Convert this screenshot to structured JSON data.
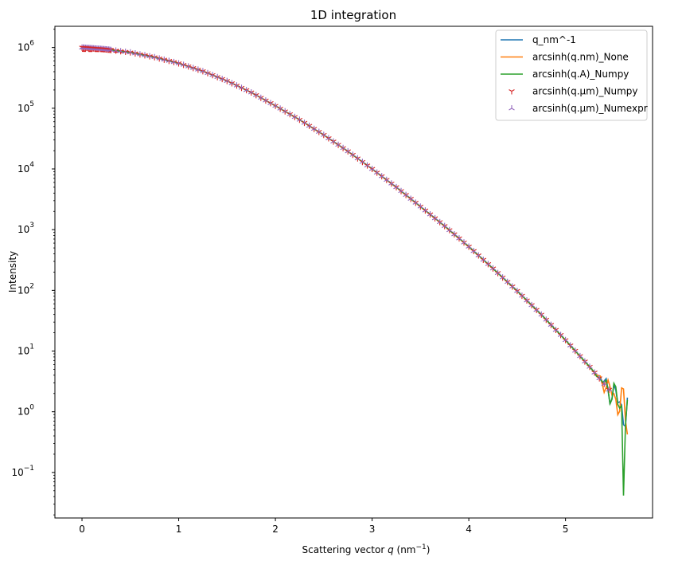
{
  "chart_data": {
    "type": "line",
    "title": "1D integration",
    "xlabel_prefix": "Scattering vector ",
    "xlabel_var": "q",
    "xlabel_unit_open": " (nm",
    "xlabel_unit_exp": "−1",
    "xlabel_unit_close": ")",
    "ylabel": "Intensity",
    "xlim": [
      -0.28,
      5.9
    ],
    "ylim_log10": [
      -1.75,
      6.35
    ],
    "yscale": "log",
    "grid": false,
    "legend_position": "top-right",
    "x_ticks": [
      {
        "value": 0,
        "label": "0"
      },
      {
        "value": 1,
        "label": "1"
      },
      {
        "value": 2,
        "label": "2"
      },
      {
        "value": 3,
        "label": "3"
      },
      {
        "value": 4,
        "label": "4"
      },
      {
        "value": 5,
        "label": "5"
      }
    ],
    "y_ticks": [
      {
        "exp": -1,
        "base": "10",
        "sup": "−1"
      },
      {
        "exp": 0,
        "base": "10",
        "sup": "0"
      },
      {
        "exp": 1,
        "base": "10",
        "sup": "1"
      },
      {
        "exp": 2,
        "base": "10",
        "sup": "2"
      },
      {
        "exp": 3,
        "base": "10",
        "sup": "3"
      },
      {
        "exp": 4,
        "base": "10",
        "sup": "4"
      },
      {
        "exp": 5,
        "base": "10",
        "sup": "5"
      },
      {
        "exp": 6,
        "base": "10",
        "sup": "6"
      }
    ],
    "curve_profile": {
      "q": [
        0.0,
        0.25,
        0.5,
        0.75,
        1.0,
        1.25,
        1.5,
        1.75,
        2.0,
        2.25,
        2.5,
        2.75,
        3.0,
        3.25,
        3.5,
        3.75,
        4.0,
        4.25,
        4.5,
        4.75,
        5.0,
        5.25,
        5.5,
        5.65
      ],
      "log10_intensity": [
        6.0,
        5.97,
        5.92,
        5.84,
        5.74,
        5.61,
        5.45,
        5.26,
        5.04,
        4.81,
        4.56,
        4.29,
        4.0,
        3.7,
        3.38,
        3.06,
        2.72,
        2.36,
        1.99,
        1.6,
        1.18,
        0.74,
        0.27,
        -0.07
      ]
    },
    "series": [
      {
        "name": "q_nm^-1",
        "style": "line",
        "color": "#1f77b4"
      },
      {
        "name": "arcsinh(q.nm)_None",
        "style": "line",
        "color": "#ff7f0e"
      },
      {
        "name": "arcsinh(q.A)_Numpy",
        "style": "line",
        "color": "#2ca02c"
      },
      {
        "name": "arcsinh(q.µm)_Numpy",
        "style": "marker-tri-down",
        "color": "#d62728"
      },
      {
        "name": "arcsinh(q.µm)_Numexpr",
        "style": "marker-tri-up",
        "color": "#9467bd"
      }
    ]
  }
}
